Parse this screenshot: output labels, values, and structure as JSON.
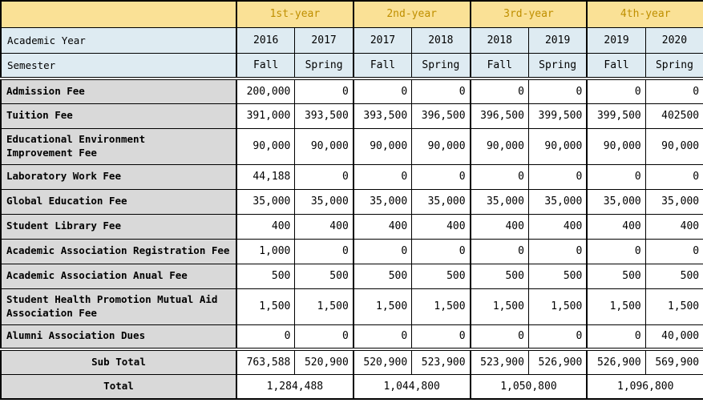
{
  "chart_data": {
    "type": "table",
    "year_groups": [
      "1st-year",
      "2nd-year",
      "3rd-year",
      "4th-year"
    ],
    "row_headers": {
      "academic_year": "Academic Year",
      "semester": "Semester"
    },
    "academic_years": [
      "2016",
      "2017",
      "2017",
      "2018",
      "2018",
      "2019",
      "2019",
      "2020"
    ],
    "semesters": [
      "Fall",
      "Spring",
      "Fall",
      "Spring",
      "Fall",
      "Spring",
      "Fall",
      "Spring"
    ],
    "fee_rows": [
      {
        "label": "Admission Fee",
        "values": [
          "200,000",
          "0",
          "0",
          "0",
          "0",
          "0",
          "0",
          "0"
        ]
      },
      {
        "label": "Tuition Fee",
        "values": [
          "391,000",
          "393,500",
          "393,500",
          "396,500",
          "396,500",
          "399,500",
          "399,500",
          "402500"
        ]
      },
      {
        "label": "Educational Environment\nImprovement Fee",
        "values": [
          "90,000",
          "90,000",
          "90,000",
          "90,000",
          "90,000",
          "90,000",
          "90,000",
          "90,000"
        ]
      },
      {
        "label": "Laboratory Work Fee",
        "values": [
          "44,188",
          "0",
          "0",
          "0",
          "0",
          "0",
          "0",
          "0"
        ]
      },
      {
        "label": "Global Education Fee",
        "values": [
          "35,000",
          "35,000",
          "35,000",
          "35,000",
          "35,000",
          "35,000",
          "35,000",
          "35,000"
        ]
      },
      {
        "label": "Student Library Fee",
        "values": [
          "400",
          "400",
          "400",
          "400",
          "400",
          "400",
          "400",
          "400"
        ]
      },
      {
        "label": "Academic Association Registration Fee",
        "values": [
          "1,000",
          "0",
          "0",
          "0",
          "0",
          "0",
          "0",
          "0"
        ]
      },
      {
        "label": "Academic Association Anual Fee",
        "values": [
          "500",
          "500",
          "500",
          "500",
          "500",
          "500",
          "500",
          "500"
        ]
      },
      {
        "label": "Student Health Promotion Mutual Aid\nAssociation Fee",
        "values": [
          "1,500",
          "1,500",
          "1,500",
          "1,500",
          "1,500",
          "1,500",
          "1,500",
          "1,500"
        ]
      },
      {
        "label": "Alumni Association Dues",
        "values": [
          "0",
          "0",
          "0",
          "0",
          "0",
          "0",
          "0",
          "40,000"
        ]
      }
    ],
    "sub_total": {
      "label": "Sub Total",
      "values": [
        "763,588",
        "520,900",
        "520,900",
        "523,900",
        "523,900",
        "526,900",
        "526,900",
        "569,900"
      ]
    },
    "total": {
      "label": "Total",
      "values": [
        "1,284,488",
        "1,044,800",
        "1,050,800",
        "1,096,800"
      ]
    }
  },
  "colors": {
    "year_header_bg": "#FAE196",
    "year_header_text": "#BF8F00",
    "subheader_bg": "#DEEBF2",
    "label_bg": "#D9D9D9",
    "cell_bg": "#FFFFFF",
    "border": "#000000"
  }
}
